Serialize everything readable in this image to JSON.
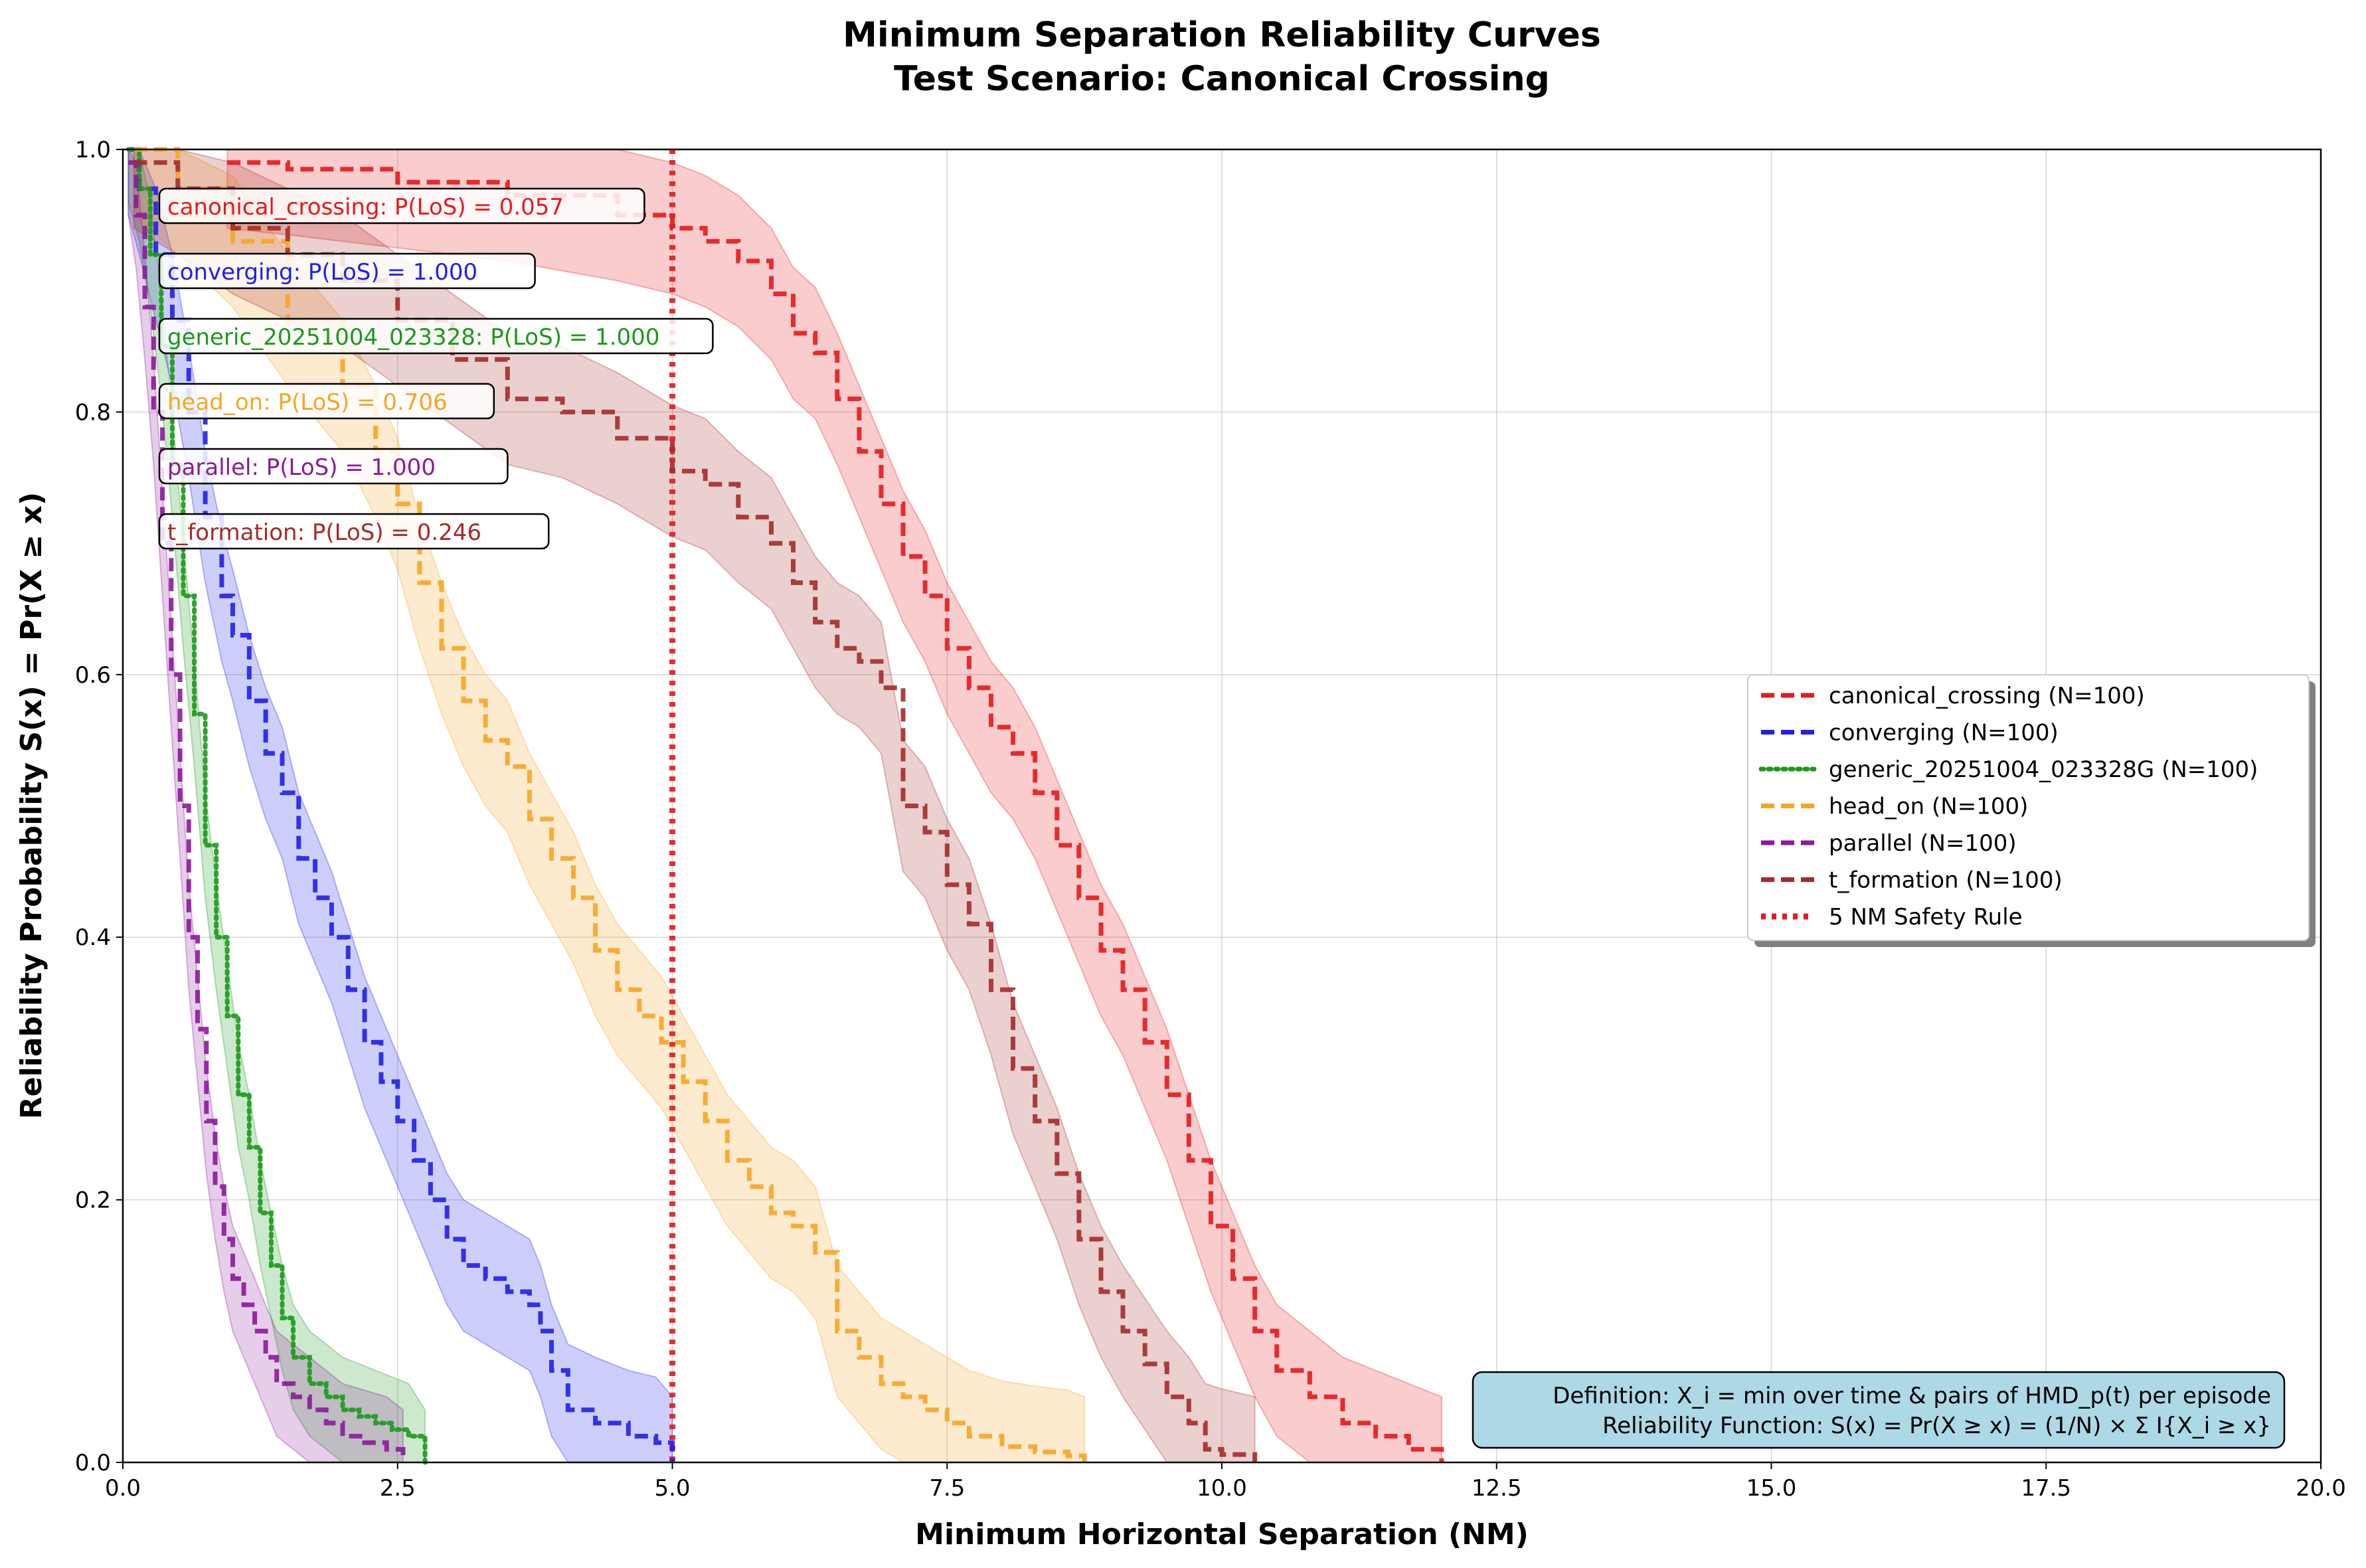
{
  "chart_data": {
    "type": "line",
    "title": "Minimum Separation Reliability Curves",
    "subtitle": "Test Scenario: Canonical Crossing",
    "xlabel": "Minimum Horizontal Separation (NM)",
    "ylabel": "Reliability Probability S(x) = Pr(X ≥ x)",
    "xlim": [
      0,
      20
    ],
    "ylim": [
      0,
      1
    ],
    "xticks": [
      "0.0",
      "2.5",
      "5.0",
      "7.5",
      "10.0",
      "12.5",
      "15.0",
      "17.5",
      "20.0"
    ],
    "yticks": [
      "0.0",
      "0.2",
      "0.4",
      "0.6",
      "0.8",
      "1.0"
    ],
    "grid": true,
    "legend_position": "center-right",
    "series": [
      {
        "name": "canonical_crossing (N=100)",
        "color": "#e41a1c",
        "style": "dashed",
        "x": [
          0.95,
          1.5,
          2.5,
          3.5,
          4.5,
          5.0,
          5.3,
          5.6,
          5.9,
          6.1,
          6.3,
          6.5,
          6.7,
          6.9,
          7.1,
          7.3,
          7.5,
          7.7,
          7.9,
          8.1,
          8.3,
          8.5,
          8.7,
          8.9,
          9.1,
          9.3,
          9.5,
          9.7,
          9.9,
          10.1,
          10.3,
          10.5,
          10.8,
          11.1,
          11.4,
          11.7,
          12.0
        ],
        "y": [
          0.99,
          0.985,
          0.975,
          0.965,
          0.95,
          0.94,
          0.93,
          0.915,
          0.89,
          0.86,
          0.845,
          0.81,
          0.77,
          0.73,
          0.69,
          0.66,
          0.62,
          0.59,
          0.56,
          0.54,
          0.51,
          0.47,
          0.43,
          0.39,
          0.36,
          0.32,
          0.28,
          0.23,
          0.18,
          0.14,
          0.1,
          0.07,
          0.05,
          0.03,
          0.02,
          0.01,
          0.0
        ],
        "band": 0.05,
        "annotation": "canonical_crossing: P(LoS) = 0.057"
      },
      {
        "name": "converging (N=100)",
        "color": "#2020e8",
        "style": "dashed",
        "x": [
          0.05,
          0.15,
          0.3,
          0.45,
          0.6,
          0.75,
          0.9,
          1.0,
          1.15,
          1.3,
          1.45,
          1.6,
          1.75,
          1.9,
          2.05,
          2.2,
          2.35,
          2.5,
          2.65,
          2.8,
          2.95,
          3.1,
          3.3,
          3.5,
          3.7,
          3.8,
          3.9,
          4.05,
          4.3,
          4.6,
          4.85,
          5.0
        ],
        "y": [
          1.0,
          0.97,
          0.92,
          0.87,
          0.8,
          0.72,
          0.66,
          0.63,
          0.58,
          0.54,
          0.51,
          0.46,
          0.43,
          0.4,
          0.36,
          0.32,
          0.29,
          0.26,
          0.23,
          0.2,
          0.17,
          0.15,
          0.14,
          0.13,
          0.12,
          0.1,
          0.07,
          0.04,
          0.03,
          0.02,
          0.015,
          0.0
        ],
        "band": 0.05,
        "annotation": "converging: P(LoS) = 1.000"
      },
      {
        "name": "generic_20251004_023328G (N=100)",
        "color": "#1a991a",
        "style": "dotted",
        "x": [
          0.05,
          0.15,
          0.25,
          0.35,
          0.45,
          0.55,
          0.65,
          0.75,
          0.85,
          0.95,
          1.05,
          1.15,
          1.25,
          1.35,
          1.45,
          1.55,
          1.7,
          1.85,
          2.0,
          2.15,
          2.3,
          2.45,
          2.6,
          2.75
        ],
        "y": [
          1.0,
          0.97,
          0.92,
          0.85,
          0.76,
          0.66,
          0.57,
          0.47,
          0.4,
          0.34,
          0.28,
          0.24,
          0.19,
          0.15,
          0.11,
          0.08,
          0.06,
          0.05,
          0.04,
          0.035,
          0.03,
          0.025,
          0.02,
          0.0
        ],
        "band": 0.04,
        "annotation": "generic_20251004_023328: P(LoS) = 1.000"
      },
      {
        "name": "head_on (N=100)",
        "color": "#f5a623",
        "style": "dashed",
        "x": [
          0.1,
          0.5,
          1.0,
          1.5,
          2.0,
          2.3,
          2.5,
          2.7,
          2.9,
          3.1,
          3.3,
          3.5,
          3.7,
          3.9,
          4.1,
          4.3,
          4.5,
          4.7,
          4.9,
          5.1,
          5.3,
          5.5,
          5.7,
          5.9,
          6.1,
          6.3,
          6.5,
          6.7,
          6.9,
          7.1,
          7.3,
          7.5,
          7.7,
          8.0,
          8.3,
          8.6,
          8.75
        ],
        "y": [
          1.0,
          0.97,
          0.93,
          0.87,
          0.82,
          0.77,
          0.73,
          0.67,
          0.62,
          0.58,
          0.55,
          0.53,
          0.49,
          0.46,
          0.43,
          0.39,
          0.36,
          0.34,
          0.32,
          0.29,
          0.26,
          0.23,
          0.21,
          0.19,
          0.18,
          0.16,
          0.1,
          0.08,
          0.06,
          0.05,
          0.04,
          0.03,
          0.02,
          0.012,
          0.008,
          0.005,
          0.0
        ],
        "band": 0.05,
        "annotation": "head_on: P(LoS) = 0.706"
      },
      {
        "name": "parallel (N=100)",
        "color": "#8b1a9a",
        "style": "dashed",
        "x": [
          0.05,
          0.12,
          0.2,
          0.28,
          0.36,
          0.44,
          0.52,
          0.6,
          0.68,
          0.76,
          0.84,
          0.92,
          1.0,
          1.1,
          1.2,
          1.3,
          1.4,
          1.55,
          1.7,
          1.85,
          2.0,
          2.2,
          2.4,
          2.55
        ],
        "y": [
          0.99,
          0.95,
          0.88,
          0.8,
          0.7,
          0.6,
          0.5,
          0.4,
          0.33,
          0.26,
          0.21,
          0.17,
          0.14,
          0.12,
          0.1,
          0.08,
          0.06,
          0.05,
          0.04,
          0.03,
          0.02,
          0.015,
          0.01,
          0.0
        ],
        "band": 0.04,
        "annotation": "parallel: P(LoS) = 1.000"
      },
      {
        "name": "t_formation (N=100)",
        "color": "#a52a2a",
        "style": "dashed",
        "x": [
          0.1,
          0.5,
          1.0,
          1.5,
          2.0,
          2.5,
          3.0,
          3.5,
          4.0,
          4.5,
          5.0,
          5.3,
          5.6,
          5.9,
          6.1,
          6.3,
          6.5,
          6.7,
          6.9,
          7.1,
          7.3,
          7.5,
          7.7,
          7.9,
          8.1,
          8.3,
          8.5,
          8.7,
          8.9,
          9.1,
          9.3,
          9.5,
          9.7,
          9.85,
          10.0,
          10.3
        ],
        "y": [
          0.99,
          0.97,
          0.94,
          0.92,
          0.9,
          0.87,
          0.84,
          0.81,
          0.8,
          0.78,
          0.755,
          0.745,
          0.72,
          0.7,
          0.67,
          0.64,
          0.62,
          0.61,
          0.59,
          0.5,
          0.48,
          0.44,
          0.41,
          0.36,
          0.3,
          0.26,
          0.22,
          0.17,
          0.13,
          0.1,
          0.075,
          0.05,
          0.03,
          0.01,
          0.006,
          0.0
        ],
        "band": 0.05,
        "annotation": "t_formation: P(LoS) = 0.246"
      }
    ],
    "reference_line": {
      "name": "5 NM Safety Rule",
      "x": 5.0,
      "color": "#e41a1c",
      "style": "dotted"
    },
    "definition_box": {
      "line1": "Definition: X_i = min over time & pairs of HMD_p(t) per episode",
      "line2": "Reliability Function: S(x) = Pr(X ≥ x) = (1/N) × Σ I{X_i ≥ x}"
    }
  }
}
